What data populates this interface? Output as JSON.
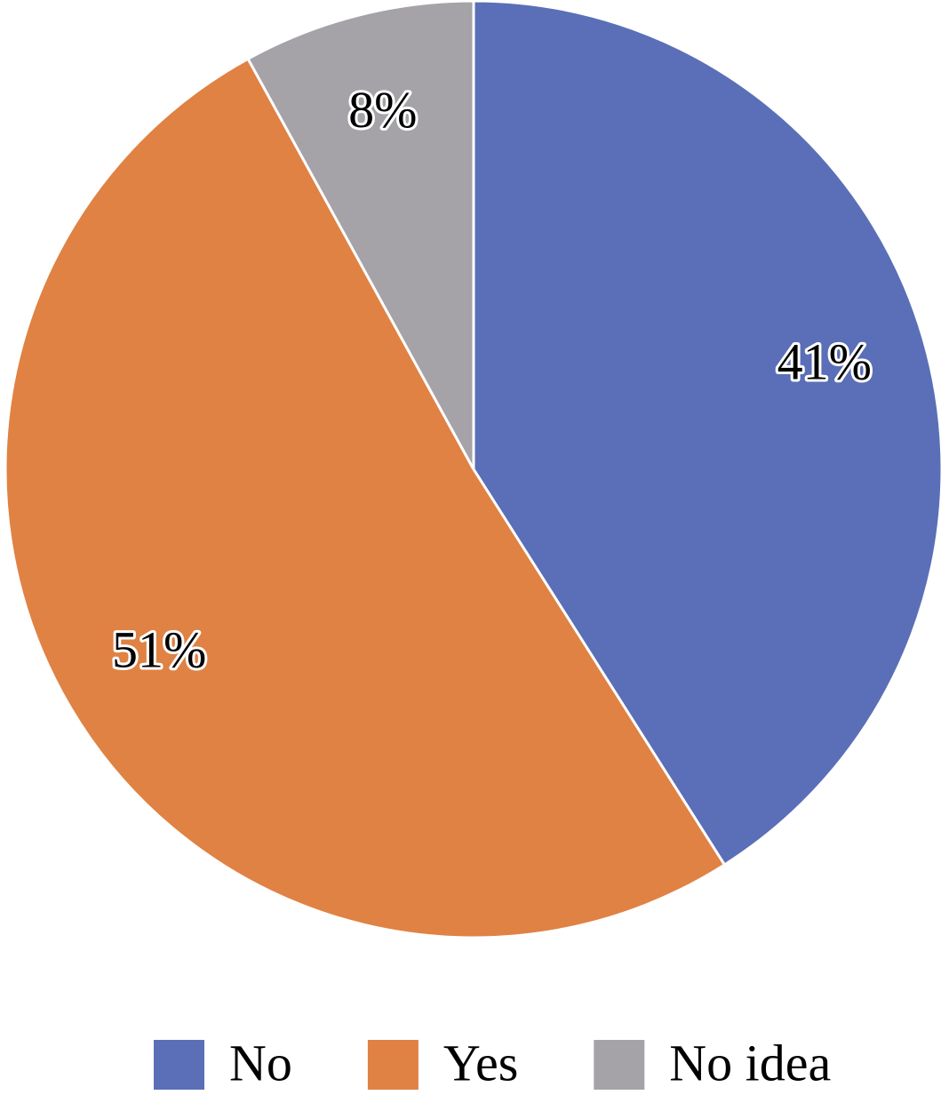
{
  "chart_data": {
    "type": "pie",
    "categories": [
      "No",
      "Yes",
      "No idea"
    ],
    "values": [
      41,
      51,
      8
    ],
    "value_labels": [
      "41%",
      "51%",
      "8%"
    ],
    "colors": [
      "#5a6fb7",
      "#e08243",
      "#a5a3a8"
    ],
    "legend": "bottom"
  }
}
